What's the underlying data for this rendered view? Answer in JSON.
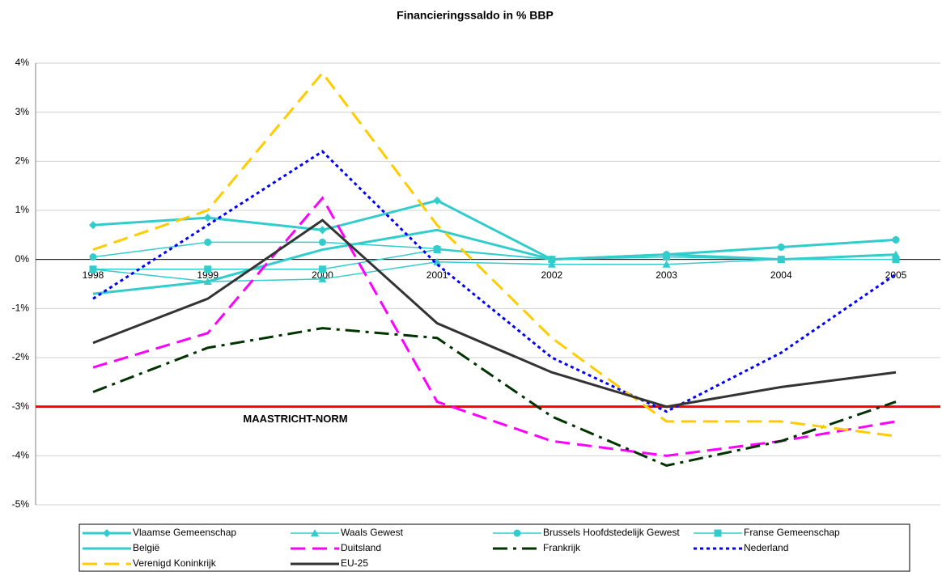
{
  "chart_data": {
    "type": "line",
    "title": "Financieringssaldo in % BBP",
    "categories": [
      "1998",
      "1999",
      "2000",
      "2001",
      "2002",
      "2003",
      "2004",
      "2005"
    ],
    "ylim": [
      -5,
      4
    ],
    "yticks": [
      {
        "value": -5,
        "label": "-5%"
      },
      {
        "value": -4,
        "label": "-4%"
      },
      {
        "value": -3,
        "label": "-3%"
      },
      {
        "value": -2,
        "label": "-2%"
      },
      {
        "value": -1,
        "label": "-1%"
      },
      {
        "value": 0,
        "label": "0%"
      },
      {
        "value": 1,
        "label": "1%"
      },
      {
        "value": 2,
        "label": "2%"
      },
      {
        "value": 3,
        "label": "3%"
      },
      {
        "value": 4,
        "label": "4%"
      }
    ],
    "grid": true,
    "reference_line": {
      "value": -3,
      "label": "MAASTRICHT-NORM",
      "color": "#ff0000"
    },
    "series": [
      {
        "name": "Vlaamse Gemeenschap",
        "color": "#33cccc",
        "style": "solid",
        "weight": "thick",
        "marker": "diamond",
        "values": [
          0.7,
          0.85,
          0.6,
          1.2,
          0.0,
          0.1,
          0.25,
          0.4
        ]
      },
      {
        "name": "Waals Gewest",
        "color": "#33cccc",
        "style": "solid",
        "weight": "thin",
        "marker": "triangle",
        "values": [
          -0.2,
          -0.45,
          -0.4,
          -0.05,
          -0.1,
          -0.1,
          0.0,
          0.1
        ]
      },
      {
        "name": "Brussels Hoofdstedelijk Gewest",
        "color": "#33cccc",
        "style": "solid",
        "weight": "thin",
        "marker": "circle",
        "values": [
          0.05,
          0.35,
          0.35,
          0.22,
          0.0,
          0.1,
          0.25,
          0.4
        ]
      },
      {
        "name": "Franse Gemeenschap",
        "color": "#33cccc",
        "style": "solid",
        "weight": "thin",
        "marker": "square",
        "values": [
          -0.2,
          -0.2,
          -0.2,
          0.2,
          0.0,
          0.05,
          0.0,
          0.0
        ]
      },
      {
        "name": "België",
        "color": "#33cccc",
        "style": "solid",
        "weight": "thick",
        "marker": "none",
        "values": [
          -0.7,
          -0.45,
          0.2,
          0.6,
          0.0,
          0.1,
          0.0,
          0.1
        ]
      },
      {
        "name": "Duitsland",
        "color": "#ff00ff",
        "style": "dash",
        "weight": "thick",
        "marker": "none",
        "values": [
          -2.2,
          -1.5,
          1.25,
          -2.9,
          -3.7,
          -4.0,
          -3.7,
          -3.3
        ]
      },
      {
        "name": "Frankrijk",
        "color": "#003300",
        "style": "dashdot",
        "weight": "thick",
        "marker": "none",
        "values": [
          -2.7,
          -1.8,
          -1.4,
          -1.6,
          -3.2,
          -4.2,
          -3.7,
          -2.9
        ]
      },
      {
        "name": "Nederland",
        "color": "#0000ff",
        "style": "dot",
        "weight": "thick",
        "marker": "none",
        "values": [
          -0.8,
          0.7,
          2.2,
          -0.1,
          -2.0,
          -3.1,
          -1.9,
          -0.3
        ]
      },
      {
        "name": "Verenigd Koninkrijk",
        "color": "#ffcc00",
        "style": "dash",
        "weight": "thick",
        "marker": "none",
        "values": [
          0.2,
          1.0,
          3.8,
          0.7,
          -1.6,
          -3.3,
          -3.3,
          -3.6
        ]
      },
      {
        "name": "EU-25",
        "color": "#333333",
        "style": "solid",
        "weight": "thick",
        "marker": "none",
        "values": [
          -1.7,
          -0.8,
          0.8,
          -1.3,
          -2.3,
          -3.0,
          -2.6,
          -2.3
        ]
      }
    ]
  }
}
